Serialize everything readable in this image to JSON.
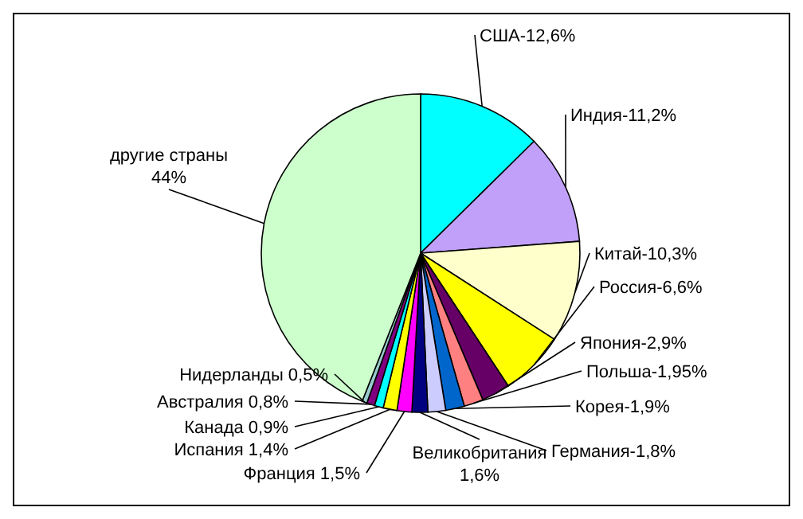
{
  "chart_data": {
    "type": "pie",
    "categories": [
      "США-12,6%",
      "Индия-11,2%",
      "Китай-10,3%",
      "Россия-6,6%",
      "Япония-2,9%",
      "Польша-1,95%",
      "Корея-1,9%",
      "Германия-1,8%",
      "Великобритания\n1,6%",
      "Франция 1,5%",
      "Испания 1,4%",
      "Канада 0,9%",
      "Австралия 0,8%",
      "Нидерланды 0,5%",
      "другие страны\n44%"
    ],
    "values": [
      12.6,
      11.2,
      10.3,
      6.6,
      2.9,
      1.95,
      1.9,
      1.8,
      1.6,
      1.5,
      1.4,
      0.9,
      0.8,
      0.5,
      44
    ],
    "colors": [
      "#00ffff",
      "#c0a0f8",
      "#ffffcc",
      "#ffff00",
      "#660066",
      "#ff8080",
      "#0066cc",
      "#ccccff",
      "#000080",
      "#ff00ff",
      "#ffff00",
      "#00ffff",
      "#800080",
      "#99cccc",
      "#ccffcc"
    ]
  }
}
